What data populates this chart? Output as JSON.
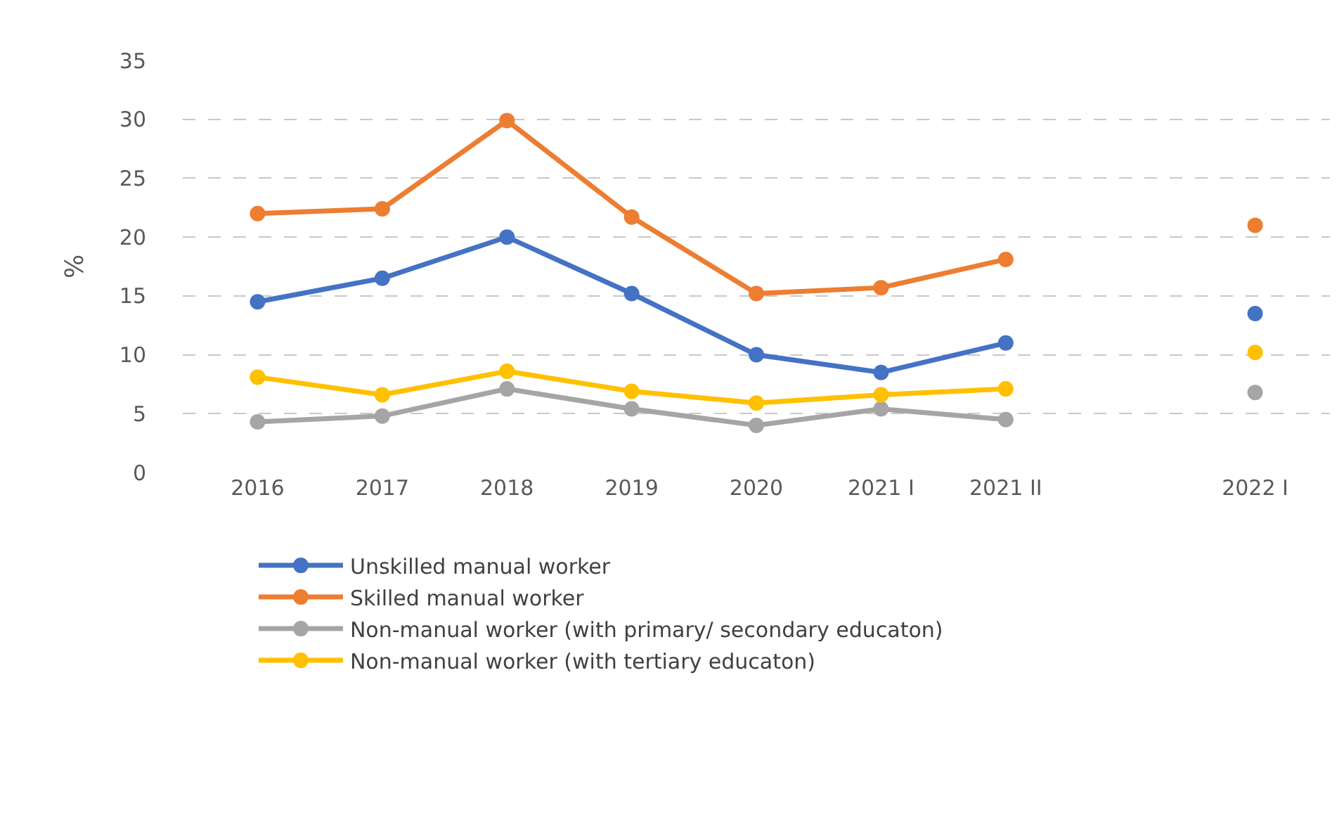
{
  "chart_data": {
    "type": "line",
    "ylabel": "%",
    "categories": [
      "2016",
      "2017",
      "2018",
      "2019",
      "2020",
      "2021 I",
      "2021 II",
      null,
      "2022 I"
    ],
    "series": [
      {
        "name": "Unskilled manual worker",
        "color": "#4472c4",
        "values": [
          14.5,
          16.5,
          20,
          15.2,
          10,
          8.5,
          11,
          null,
          13.5
        ]
      },
      {
        "name": "Skilled manual worker",
        "color": "#ed7d31",
        "values": [
          22,
          22.4,
          29.9,
          21.7,
          15.2,
          15.7,
          18.1,
          null,
          21
        ]
      },
      {
        "name": "Non-manual worker (with primary/ secondary educaton)",
        "color": "#a5a5a5",
        "values": [
          4.3,
          4.8,
          7.1,
          5.4,
          4,
          5.4,
          4.5,
          null,
          6.8
        ]
      },
      {
        "name": "Non-manual worker (with tertiary educaton)",
        "color": "#ffc000",
        "values": [
          8.1,
          6.6,
          8.6,
          6.9,
          5.9,
          6.6,
          7.1,
          null,
          10.2
        ]
      }
    ],
    "ylim": [
      0,
      35
    ],
    "yticks": [
      0,
      5,
      10,
      15,
      20,
      25,
      30,
      35
    ],
    "grid": "y",
    "legend": "bottom",
    "marker": "circle",
    "line_style": "solid"
  }
}
